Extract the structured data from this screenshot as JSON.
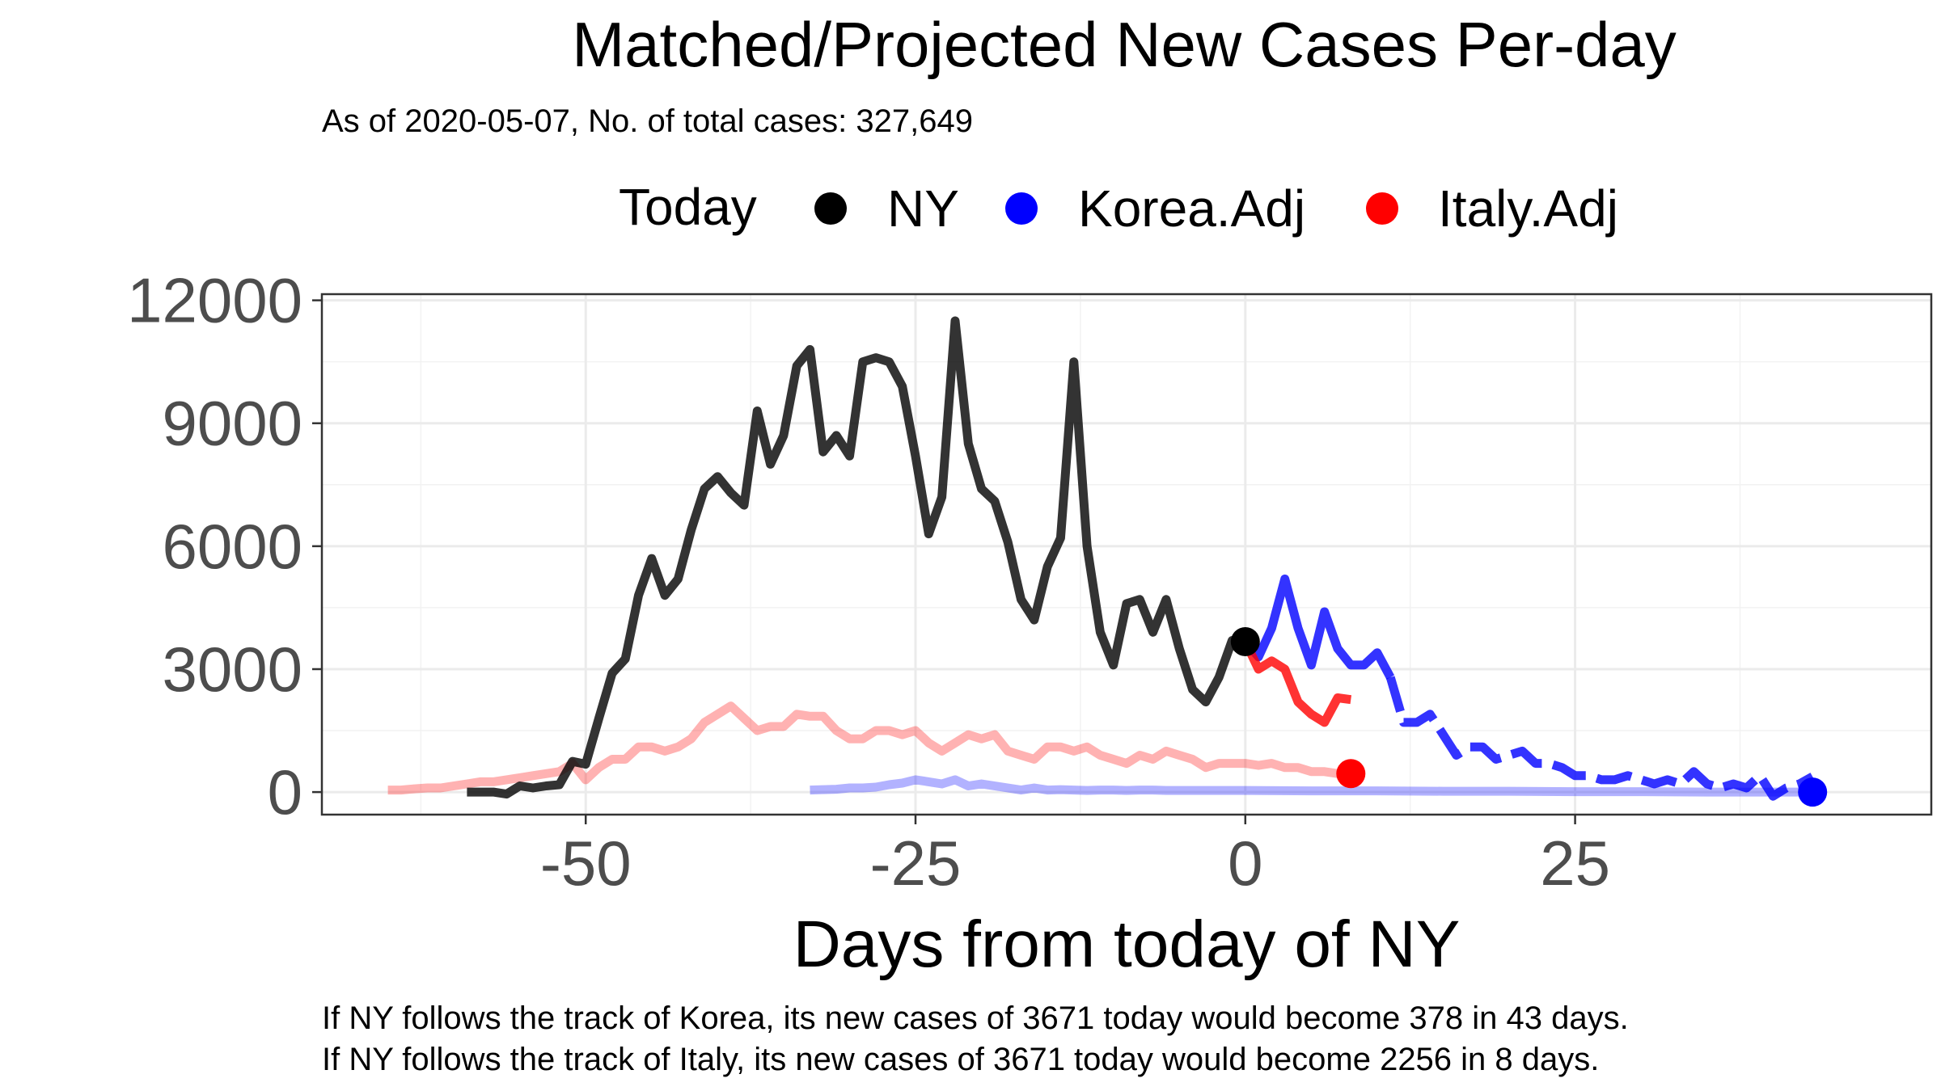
{
  "chart_data": {
    "type": "line",
    "title": "Matched/Projected New Cases Per-day",
    "subtitle": "As of 2020-05-07, No. of total cases: 327,649",
    "xlabel": "Days from today of NY",
    "ylabel": "",
    "xlim": [
      -70,
      52
    ],
    "ylim": [
      -550,
      12150
    ],
    "x_ticks": [
      -50,
      -25,
      0,
      25
    ],
    "x_tick_labels": [
      "-50",
      "-25",
      "0",
      "25"
    ],
    "y_ticks": [
      0,
      3000,
      6000,
      9000,
      12000
    ],
    "y_tick_labels": [
      "0",
      "3000",
      "6000",
      "9000",
      "12000"
    ],
    "grid": true,
    "legend": {
      "title": "Today",
      "position": "top",
      "entries": [
        {
          "label": "NY",
          "color": "#000000"
        },
        {
          "label": "Korea.Adj",
          "color": "#0000ff"
        },
        {
          "label": "Italy.Adj",
          "color": "#ff0000"
        }
      ]
    },
    "series": [
      {
        "name": "NY",
        "color": "#000000",
        "opacity": 0.8,
        "dash": false,
        "x": [
          -59,
          -58,
          -57,
          -56,
          -55,
          -54,
          -53,
          -52,
          -51,
          -50,
          -49,
          -48,
          -47,
          -46,
          -45,
          -44,
          -43,
          -42,
          -41,
          -40,
          -39,
          -38,
          -37,
          -36,
          -35,
          -34,
          -33,
          -32,
          -31,
          -30,
          -29,
          -28,
          -27,
          -26,
          -25,
          -24,
          -23,
          -22,
          -21,
          -20,
          -19,
          -18,
          -17,
          -16,
          -15,
          -14,
          -13,
          -12,
          -11,
          -10,
          -9,
          -8,
          -7,
          -6,
          -5,
          -4,
          -3,
          -2,
          -1,
          0
        ],
        "y": [
          0,
          0,
          0,
          -50,
          150,
          100,
          150,
          180,
          750,
          680,
          1800,
          2900,
          3250,
          4800,
          5700,
          4800,
          5200,
          6400,
          7400,
          7700,
          7300,
          7000,
          9300,
          8000,
          8700,
          10400,
          10800,
          8300,
          8700,
          8200,
          10500,
          10600,
          10500,
          9900,
          8200,
          6300,
          7200,
          11500,
          8500,
          7400,
          7100,
          6100,
          4700,
          4200,
          5500,
          6200,
          10500,
          6000,
          3900,
          3100,
          4600,
          4700,
          3900,
          4700,
          3500,
          2500,
          2200,
          2800,
          3700,
          3671
        ]
      },
      {
        "name": "",
        "color": "#0000ff",
        "opacity": 0.8,
        "dash": false,
        "x": [
          0,
          1,
          2,
          3,
          4,
          5,
          6,
          7,
          8,
          9,
          10,
          11
        ],
        "y": [
          3671,
          3300,
          4000,
          5200,
          4000,
          3100,
          4400,
          3500,
          3100,
          3100,
          3400,
          2800
        ]
      },
      {
        "name": "",
        "color": "#0000ff",
        "opacity": 0.8,
        "dash": true,
        "x": [
          11,
          12,
          13,
          14,
          15,
          16,
          17,
          18,
          19,
          20,
          21,
          22,
          23,
          24,
          25,
          26,
          27,
          28,
          29,
          30,
          31,
          32,
          33,
          34,
          35,
          36,
          37,
          38,
          39,
          40,
          41,
          42,
          43
        ],
        "y": [
          2800,
          1700,
          1700,
          1900,
          1400,
          900,
          1100,
          1100,
          800,
          900,
          1000,
          700,
          700,
          600,
          400,
          400,
          300,
          300,
          400,
          300,
          200,
          300,
          200,
          500,
          200,
          100,
          200,
          100,
          400,
          -100,
          100,
          200,
          378
        ]
      },
      {
        "name": "",
        "color": "#ff0000",
        "opacity": 0.8,
        "dash": false,
        "x": [
          0,
          1,
          2,
          3,
          4,
          5,
          6,
          7,
          8
        ],
        "y": [
          3671,
          3000,
          3200,
          3000,
          2200,
          1900,
          1700,
          2300,
          2256
        ]
      },
      {
        "name": "",
        "color": "#ff0000",
        "opacity": 0.3,
        "dash": false,
        "x": [
          -65,
          -64,
          -63,
          -62,
          -61,
          -60,
          -59,
          -58,
          -57,
          -56,
          -55,
          -54,
          -53,
          -52,
          -51,
          -50,
          -49,
          -48,
          -47,
          -46,
          -45,
          -44,
          -43,
          -42,
          -41,
          -40,
          -39,
          -38,
          -37,
          -36,
          -35,
          -34,
          -33,
          -32,
          -31,
          -30,
          -29,
          -28,
          -27,
          -26,
          -25,
          -24,
          -23,
          -22,
          -21,
          -20,
          -19,
          -18,
          -17,
          -16,
          -15,
          -14,
          -13,
          -12,
          -11,
          -10,
          -9,
          -8,
          -7,
          -6,
          -5,
          -4,
          -3,
          -2,
          -1,
          0,
          1,
          2,
          3,
          4,
          5,
          6,
          7,
          8
        ],
        "y": [
          50,
          50,
          80,
          100,
          100,
          150,
          200,
          250,
          250,
          300,
          350,
          400,
          450,
          500,
          700,
          300,
          600,
          800,
          800,
          1100,
          1100,
          1000,
          1100,
          1300,
          1700,
          1900,
          2100,
          1800,
          1500,
          1600,
          1600,
          1900,
          1850,
          1850,
          1500,
          1300,
          1300,
          1500,
          1500,
          1400,
          1500,
          1200,
          1000,
          1200,
          1400,
          1300,
          1400,
          1000,
          900,
          800,
          1100,
          1100,
          1000,
          1100,
          900,
          800,
          700,
          900,
          800,
          1000,
          900,
          800,
          600,
          700,
          700,
          700,
          650,
          700,
          600,
          600,
          500,
          500,
          450,
          450
        ]
      },
      {
        "name": "",
        "color": "#0000ff",
        "opacity": 0.3,
        "dash": false,
        "x": [
          -33,
          -32,
          -31,
          -30,
          -29,
          -28,
          -27,
          -26,
          -25,
          -24,
          -23,
          -22,
          -21,
          -20,
          -19,
          -18,
          -17,
          -16,
          -15,
          -14,
          -13,
          -12,
          -11,
          -10,
          -9,
          -8,
          -7,
          -6,
          -5,
          -4,
          -3,
          -2,
          -1,
          0,
          5,
          10,
          15,
          20,
          25,
          30,
          35,
          40,
          43
        ],
        "y": [
          50,
          60,
          70,
          100,
          100,
          120,
          180,
          220,
          300,
          250,
          200,
          300,
          150,
          200,
          150,
          100,
          50,
          100,
          50,
          60,
          50,
          40,
          50,
          50,
          40,
          50,
          50,
          40,
          40,
          40,
          40,
          40,
          40,
          40,
          30,
          30,
          20,
          20,
          10,
          10,
          0,
          0,
          0
        ]
      }
    ],
    "points": [
      {
        "x": 0,
        "y": 3671,
        "color": "#000000"
      },
      {
        "x": 8,
        "y": 450,
        "color": "#ff0000"
      },
      {
        "x": 43,
        "y": 0,
        "color": "#0000ff"
      }
    ],
    "footnotes": [
      "If NY follows the track of Korea, its new cases of 3671 today would become 378 in 43 days.",
      "If NY follows the track of Italy, its new cases of 3671 today would become 2256 in 8 days."
    ]
  }
}
